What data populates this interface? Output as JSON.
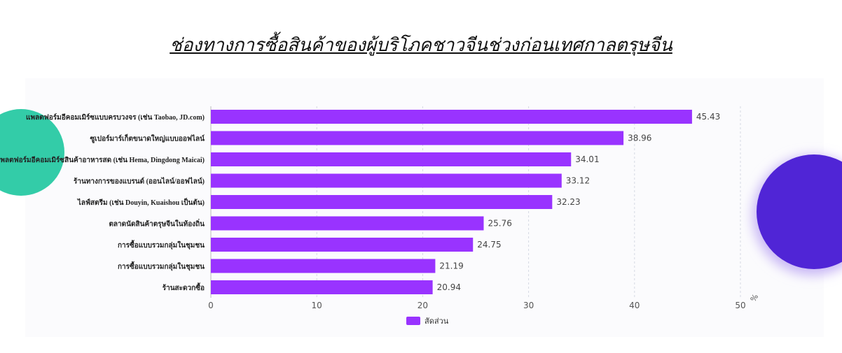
{
  "chart_data": {
    "type": "bar",
    "orientation": "horizontal",
    "title": "ช่องทางการซื้อสินค้าของผู้บริโภคชาวจีนช่วงก่อนเทศกาลตรุษจีน",
    "categories": [
      "แพลตฟอร์มอีคอมเมิร์ซแบบครบวงจร (เช่น Taobao, JD.com)",
      "ซูเปอร์มาร์เก็ตขนาดใหญ่แบบออฟไลน์",
      "แพลตฟอร์มอีคอมเมิร์ซสินค้าอาหารสด (เช่น Hema, Dingdong Maicai)",
      "ร้านทางการของแบรนด์ (ออนไลน์/ออฟไลน์)",
      "ไลฟ์สตรีม (เช่น Douyin, Kuaishou เป็นต้น)",
      "ตลาดนัดสินค้าตรุษจีนในท้องถิ่น",
      "การซื้อแบบรวมกลุ่มในชุมชน",
      "การซื้อแบบรวมกลุ่มในชุมชน",
      "ร้านสะดวกซื้อ"
    ],
    "series": [
      {
        "name": "สัดส่วน",
        "values": [
          45.43,
          38.96,
          34.01,
          33.12,
          32.23,
          25.76,
          24.75,
          21.19,
          20.94
        ],
        "color": "#9933ff"
      }
    ],
    "xlabel": "%",
    "xlim": [
      0,
      50
    ],
    "xticks": [
      0,
      10,
      20,
      30,
      40,
      50
    ],
    "grid": true,
    "legend": "bottom-center"
  },
  "decor": {
    "left_circle_color": "#33cca8",
    "right_circle_color": "#5025d6"
  }
}
